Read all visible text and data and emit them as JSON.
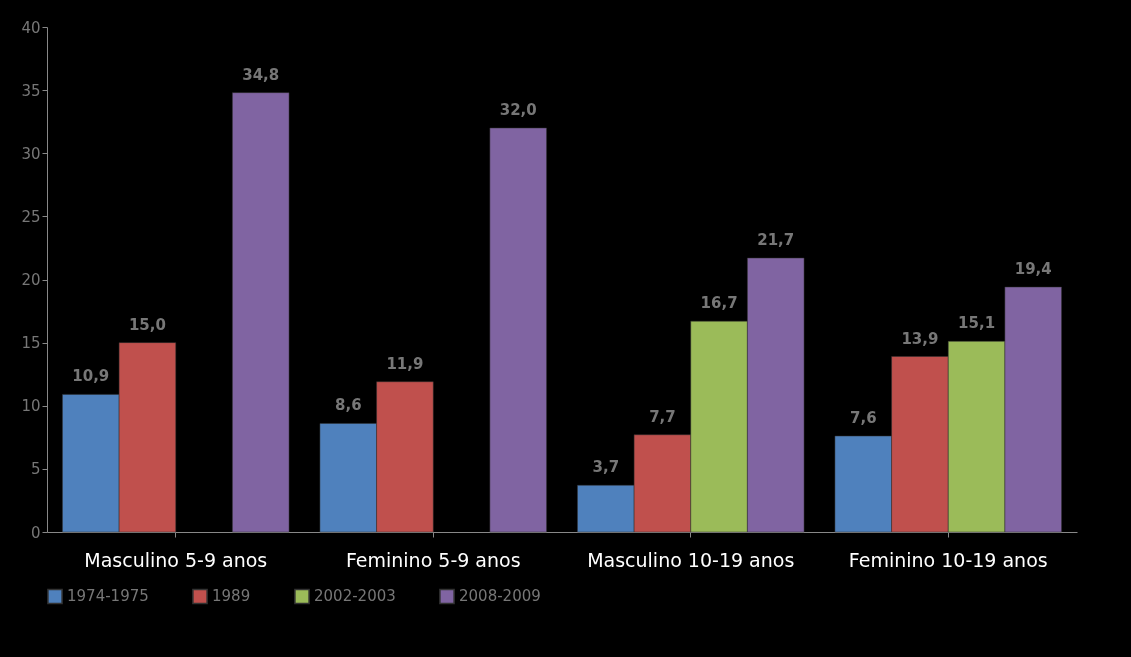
{
  "chart_data": {
    "type": "bar",
    "categories": [
      "Masculino 5-9 anos",
      "Feminino 5-9 anos",
      "Masculino 10-19 anos",
      "Feminino 10-19 anos"
    ],
    "series": [
      {
        "name": "1974-1975",
        "color": "#4f81bd",
        "values": [
          10.9,
          8.6,
          3.7,
          7.6
        ],
        "value_labels": [
          "10,9",
          "8,6",
          "3,7",
          "7,6"
        ]
      },
      {
        "name": "1989",
        "color": "#c0504d",
        "values": [
          15.0,
          11.9,
          7.7,
          13.9
        ],
        "value_labels": [
          "15,0",
          "11,9",
          "7,7",
          "13,9"
        ]
      },
      {
        "name": "2002-2003",
        "color": "#9bbb59",
        "values": [
          null,
          null,
          16.7,
          15.1
        ],
        "value_labels": [
          null,
          null,
          "16,7",
          "15,1"
        ]
      },
      {
        "name": "2008-2009",
        "color": "#8064a2",
        "values": [
          34.8,
          32.0,
          21.7,
          19.4
        ],
        "value_labels": [
          "34,8",
          "32,0",
          "21,7",
          "19,4"
        ]
      }
    ],
    "ylim": [
      0,
      40
    ],
    "yticks": [
      0,
      5,
      10,
      15,
      20,
      25,
      30,
      35,
      40
    ],
    "grid": false,
    "legend": "bottom"
  }
}
